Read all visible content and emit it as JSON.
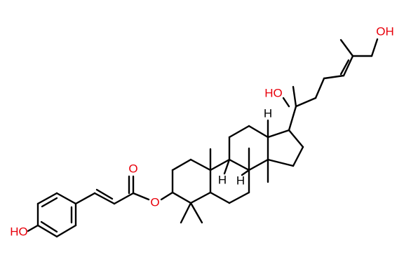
{
  "atom_labels": [
    "OH",
    "HO",
    "H",
    "H",
    "H",
    "O",
    "O",
    "HO"
  ]
}
